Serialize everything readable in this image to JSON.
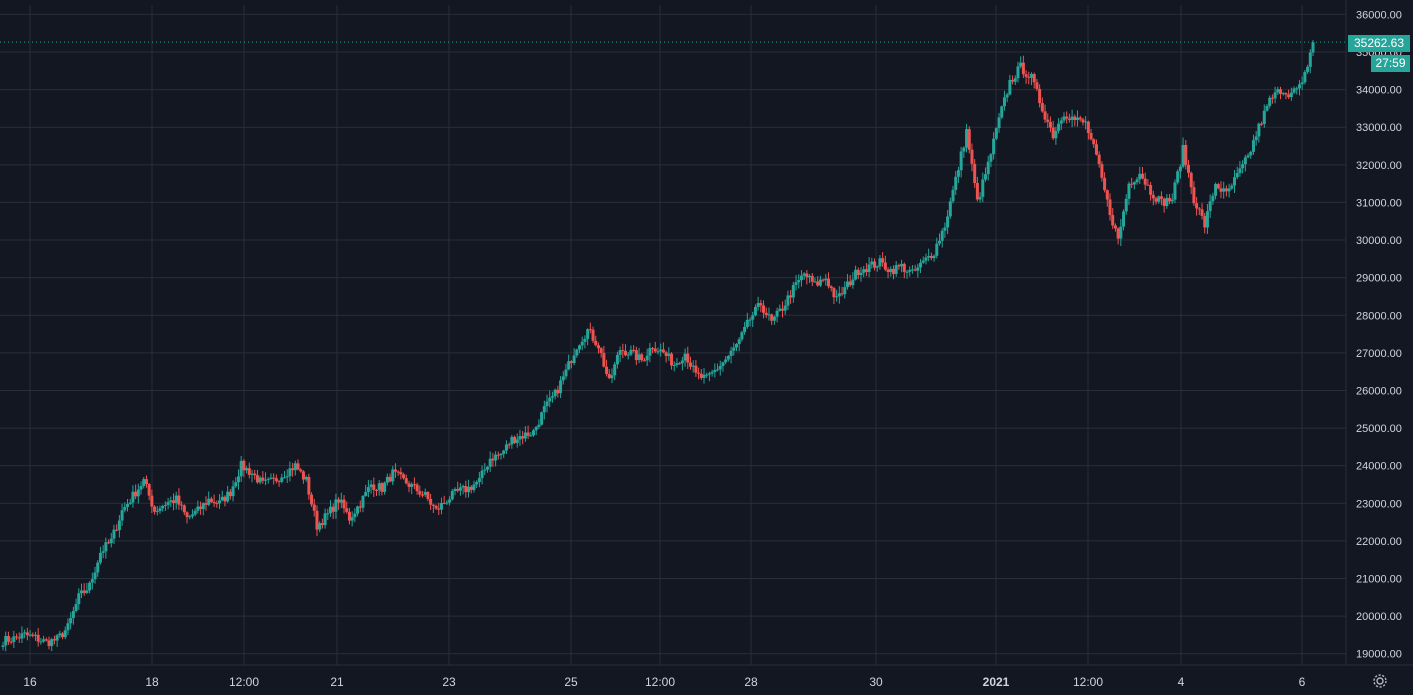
{
  "colors": {
    "background": "#131722",
    "grid": "#2a2e39",
    "axis_text": "#d1d4dc",
    "up": "#26a69a",
    "down": "#ef5350",
    "price_line": "#26a69a"
  },
  "last_price_label": "35262.63",
  "countdown_label": "27:59",
  "settings_icon": "gear-icon",
  "chart_data": {
    "type": "candlestick",
    "x_tick_labels": [
      "16",
      "18",
      "12:00",
      "21",
      "23",
      "25",
      "12:00",
      "28",
      "30",
      "2021",
      "12:00",
      "4",
      "6"
    ],
    "y_tick_labels": [
      "19000.00",
      "20000.00",
      "21000.00",
      "22000.00",
      "23000.00",
      "24000.00",
      "25000.00",
      "26000.00",
      "27000.00",
      "28000.00",
      "29000.00",
      "30000.00",
      "31000.00",
      "32000.00",
      "33000.00",
      "34000.00",
      "35000.00",
      "36000.00"
    ],
    "ylim": [
      18700,
      36250
    ],
    "grid": true,
    "last_price": 35262.63,
    "series": [
      {
        "values": [
          19350,
          19400,
          19500,
          19420,
          19300,
          19380,
          19700,
          20500,
          20800,
          21700,
          22000,
          22800,
          23200,
          23600,
          22800,
          23000,
          23100,
          22600,
          22800,
          23100,
          23000,
          23300,
          24000,
          23800,
          23500,
          23600,
          23800,
          24000,
          23600,
          22400,
          22700,
          23100,
          22600,
          23000,
          23500,
          23400,
          23800,
          23600,
          23400,
          23200,
          22800,
          23100,
          23300,
          23400,
          23600,
          24200,
          24300,
          24700,
          24800,
          24900,
          25500,
          25900,
          26500,
          27200,
          27600,
          27200,
          26200,
          27100,
          27000,
          26800,
          27200,
          27000,
          26700,
          27000,
          26400,
          26300,
          26600,
          26900,
          27300,
          27900,
          28300,
          27800,
          28200,
          28700,
          29100,
          28800,
          29000,
          28400,
          28800,
          29200,
          29300,
          29400,
          29200,
          29300,
          29100,
          29400,
          29700,
          30400,
          31600,
          32900,
          31000,
          32000,
          33200,
          34200,
          34600,
          34300,
          33500,
          32800,
          33400,
          33200,
          33100,
          32200,
          31000,
          30000,
          31500,
          31800,
          31300,
          31000,
          31100,
          32400,
          31100,
          30400,
          31500,
          31200,
          31700,
          32200,
          33000,
          33700,
          34000,
          33900,
          34100,
          35260
        ]
      }
    ]
  }
}
